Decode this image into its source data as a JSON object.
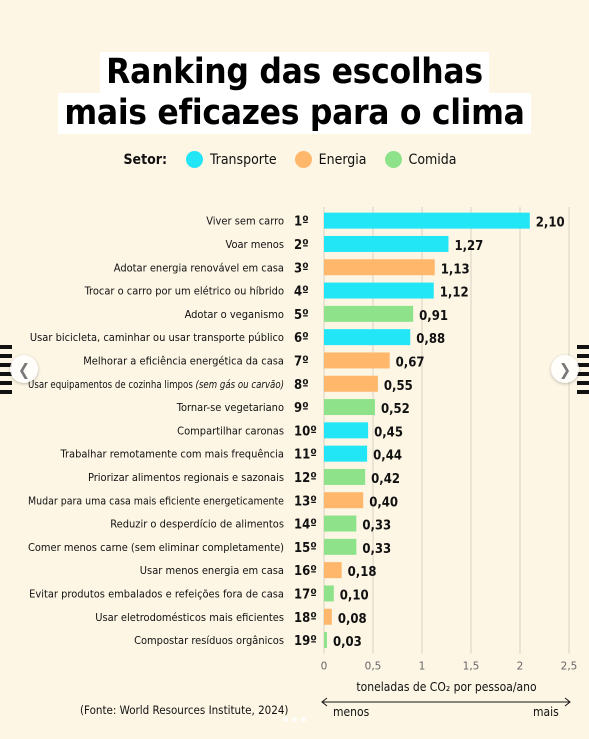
{
  "title": {
    "line1": "Ranking das escolhas",
    "line2": "mais eficazes para o clima"
  },
  "legend": {
    "label": "Setor:",
    "items": [
      {
        "name": "Transporte",
        "color": "#22e5f5"
      },
      {
        "name": "Energia",
        "color": "#ffb76b"
      },
      {
        "name": "Comida",
        "color": "#8ee38a"
      }
    ]
  },
  "chart_data": {
    "type": "bar",
    "orientation": "horizontal",
    "xlim": [
      0,
      2.5
    ],
    "xticks": [
      "0",
      "0,5",
      "1",
      "1,5",
      "2",
      "2,5"
    ],
    "xlabel": "toneladas de CO₂ por pessoa/ano",
    "grid": true,
    "items": [
      {
        "rank": "1º",
        "label": "Viver sem carro",
        "value": 2.1,
        "value_label": "2,10",
        "sector": "Transporte"
      },
      {
        "rank": "2º",
        "label": "Voar menos",
        "value": 1.27,
        "value_label": "1,27",
        "sector": "Transporte"
      },
      {
        "rank": "3º",
        "label": "Adotar energia renovável em casa",
        "value": 1.13,
        "value_label": "1,13",
        "sector": "Energia"
      },
      {
        "rank": "4º",
        "label": "Trocar o carro por um elétrico ou híbrido",
        "value": 1.12,
        "value_label": "1,12",
        "sector": "Transporte"
      },
      {
        "rank": "5º",
        "label": "Adotar o veganismo",
        "value": 0.91,
        "value_label": "0,91",
        "sector": "Comida"
      },
      {
        "rank": "6º",
        "label": "Usar bicicleta, caminhar ou usar transporte público",
        "value": 0.88,
        "value_label": "0,88",
        "sector": "Transporte"
      },
      {
        "rank": "7º",
        "label": "Melhorar a eficiência energética da casa",
        "value": 0.67,
        "value_label": "0,67",
        "sector": "Energia"
      },
      {
        "rank": "8º",
        "label": "Usar equipamentos de cozinha limpos",
        "label_italic": "(sem gás ou carvão)",
        "value": 0.55,
        "value_label": "0,55",
        "sector": "Energia"
      },
      {
        "rank": "9º",
        "label": "Tornar-se vegetariano",
        "value": 0.52,
        "value_label": "0,52",
        "sector": "Comida"
      },
      {
        "rank": "10º",
        "label": "Compartilhar caronas",
        "value": 0.45,
        "value_label": "0,45",
        "sector": "Transporte"
      },
      {
        "rank": "11º",
        "label": "Trabalhar remotamente com mais frequência",
        "value": 0.44,
        "value_label": "0,44",
        "sector": "Transporte"
      },
      {
        "rank": "12º",
        "label": "Priorizar alimentos regionais e sazonais",
        "value": 0.42,
        "value_label": "0,42",
        "sector": "Comida"
      },
      {
        "rank": "13º",
        "label": "Mudar para uma casa mais eficiente energeticamente",
        "value": 0.4,
        "value_label": "0,40",
        "sector": "Energia"
      },
      {
        "rank": "14º",
        "label": "Reduzir o desperdício de alimentos",
        "value": 0.33,
        "value_label": "0,33",
        "sector": "Comida"
      },
      {
        "rank": "15º",
        "label": "Comer menos carne (sem eliminar completamente)",
        "value": 0.33,
        "value_label": "0,33",
        "sector": "Comida"
      },
      {
        "rank": "16º",
        "label": "Usar menos energia em casa",
        "value": 0.18,
        "value_label": "0,18",
        "sector": "Energia"
      },
      {
        "rank": "17º",
        "label": "Evitar produtos embalados e refeições fora de casa",
        "value": 0.1,
        "value_label": "0,10",
        "sector": "Comida"
      },
      {
        "rank": "18º",
        "label": "Usar eletrodomésticos mais eficientes",
        "value": 0.08,
        "value_label": "0,08",
        "sector": "Energia"
      },
      {
        "rank": "19º",
        "label": "Compostar resíduos orgânicos",
        "value": 0.03,
        "value_label": "0,03",
        "sector": "Comida"
      }
    ]
  },
  "axis_title": "toneladas de CO₂ por pessoa/ano",
  "scale": {
    "less": "menos",
    "more": "mais"
  },
  "source": "(Fonte: World Resources Institute, 2024)",
  "nav": {
    "prev_icon": "chevron-left-icon",
    "next_icon": "chevron-right-icon"
  }
}
